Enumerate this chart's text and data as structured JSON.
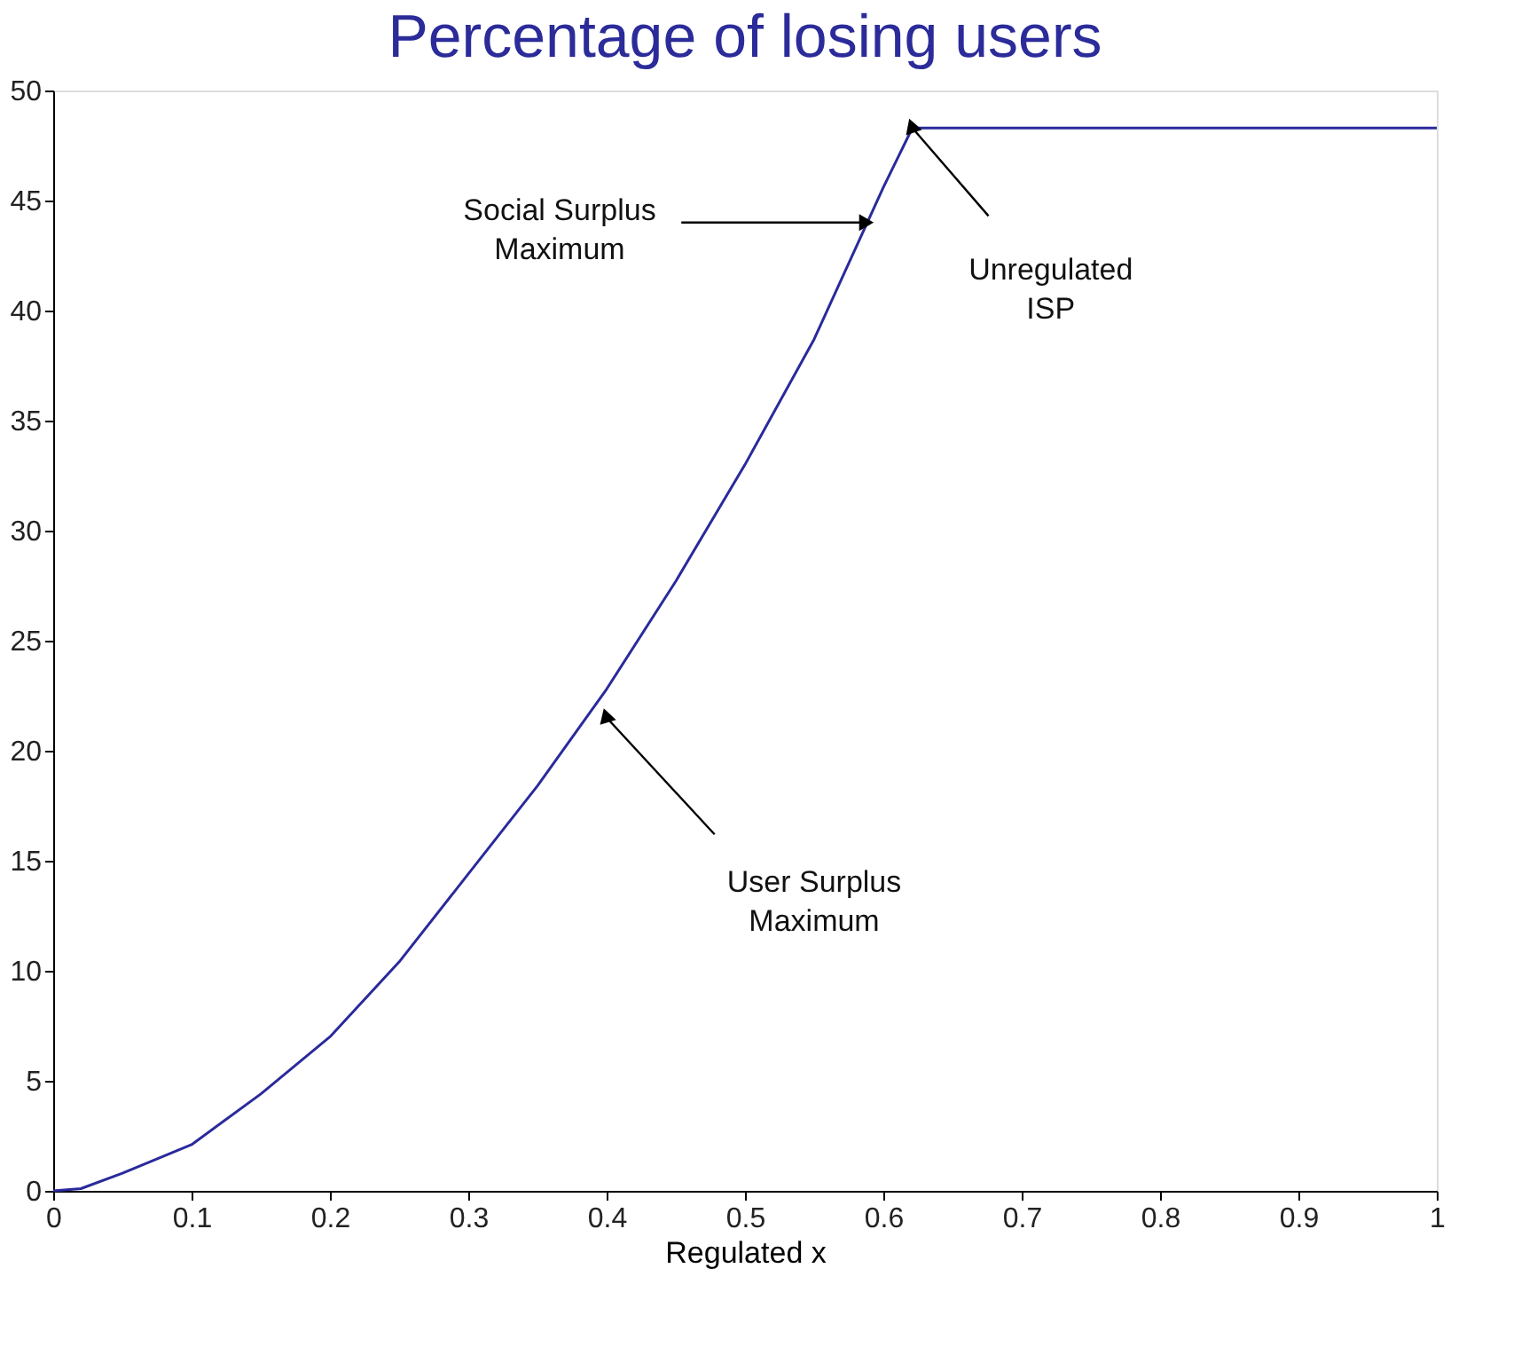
{
  "chart_data": {
    "type": "line",
    "title": "Percentage of losing users",
    "xlabel": "Regulated x",
    "x": [
      0,
      0.02,
      0.05,
      0.1,
      0.15,
      0.2,
      0.25,
      0.3,
      0.35,
      0.4,
      0.45,
      0.5,
      0.55,
      0.6,
      0.621,
      0.7,
      0.8,
      0.9,
      1
    ],
    "series": [
      {
        "color": "#2a2a9c",
        "values": [
          0,
          0.1,
          0.8,
          2.1,
          4.4,
          7.0,
          10.4,
          14.4,
          18.4,
          22.8,
          27.7,
          33,
          38.7,
          45.6,
          48.3,
          48.3,
          48.3,
          48.3,
          48.3
        ]
      }
    ],
    "xlim": [
      0,
      1
    ],
    "xticks": [
      0,
      0.1,
      0.2,
      0.3,
      0.4,
      0.5,
      0.6,
      0.7,
      0.8,
      0.9,
      1
    ],
    "ylim": [
      0,
      50
    ],
    "yticks": [
      0,
      5,
      10,
      15,
      20,
      25,
      30,
      35,
      40,
      45,
      50
    ],
    "grid": false,
    "legend": false,
    "marker": "none",
    "line_style": "solid",
    "annotations": [
      {
        "text": "Social Surplus Maximum",
        "x": 0.586,
        "y": 44
      },
      {
        "text": "Unregulated ISP",
        "x": 0.621,
        "y": 48.3
      },
      {
        "text": "User Surplus Maximum",
        "x": 0.4,
        "y": 21.5
      }
    ]
  }
}
